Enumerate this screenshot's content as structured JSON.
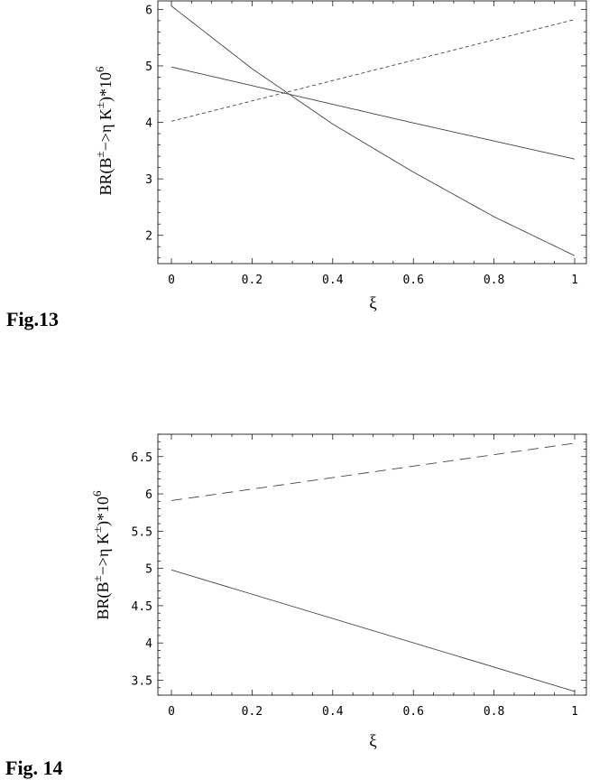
{
  "figures": [
    {
      "caption": "Fig.13"
    },
    {
      "caption": "Fig. 14"
    }
  ],
  "chart_data": [
    {
      "type": "line",
      "xlabel": "ξ",
      "ylabel": {
        "prefix": "BR(B",
        "sup1": "±",
        "middle": "−>η  K",
        "sup2": "±",
        "suffix": ")*10",
        "sup3": "6"
      },
      "xlim": [
        0,
        1
      ],
      "ylim": [
        1.5,
        6.15
      ],
      "xticks": [
        0,
        0.2,
        0.4,
        0.6,
        0.8,
        1
      ],
      "xtick_labels": [
        "0",
        "0.2",
        "0.4",
        "0.6",
        "0.8",
        "1"
      ],
      "yticks": [
        2,
        3,
        4,
        5,
        6
      ],
      "ytick_labels": [
        "2",
        "3",
        "4",
        "5",
        "6"
      ],
      "grid": false,
      "series": [
        {
          "style": "solid",
          "x": [
            0,
            0.2,
            0.4,
            0.6,
            0.8,
            1
          ],
          "y": [
            6.06,
            4.95,
            3.97,
            3.12,
            2.33,
            1.64
          ]
        },
        {
          "style": "solid",
          "x": [
            0,
            0.2,
            0.4,
            0.6,
            0.8,
            1
          ],
          "y": [
            4.98,
            4.65,
            4.32,
            3.99,
            3.67,
            3.35
          ]
        },
        {
          "style": "dashed",
          "x": [
            0,
            1
          ],
          "y": [
            4.02,
            5.82
          ]
        }
      ]
    },
    {
      "type": "line",
      "xlabel": "ξ",
      "ylabel": {
        "prefix": "BR(B",
        "sup1": "±",
        "middle": "−>η  K",
        "sup2": "±",
        "suffix": ")*10",
        "sup3": "6"
      },
      "xlim": [
        0,
        1
      ],
      "ylim": [
        3.3,
        6.8
      ],
      "xticks": [
        0,
        0.2,
        0.4,
        0.6,
        0.8,
        1
      ],
      "xtick_labels": [
        "0",
        "0.2",
        "0.4",
        "0.6",
        "0.8",
        "1"
      ],
      "yticks": [
        3.5,
        4,
        4.5,
        5,
        5.5,
        6,
        6.5
      ],
      "ytick_labels": [
        "3.5",
        "4",
        "4.5",
        "5",
        "5.5",
        "6",
        "6.5"
      ],
      "grid": false,
      "series": [
        {
          "style": "dashed",
          "x": [
            0,
            1
          ],
          "y": [
            5.91,
            6.68
          ]
        },
        {
          "style": "solid",
          "x": [
            0,
            1
          ],
          "y": [
            4.98,
            3.35
          ]
        }
      ]
    }
  ]
}
